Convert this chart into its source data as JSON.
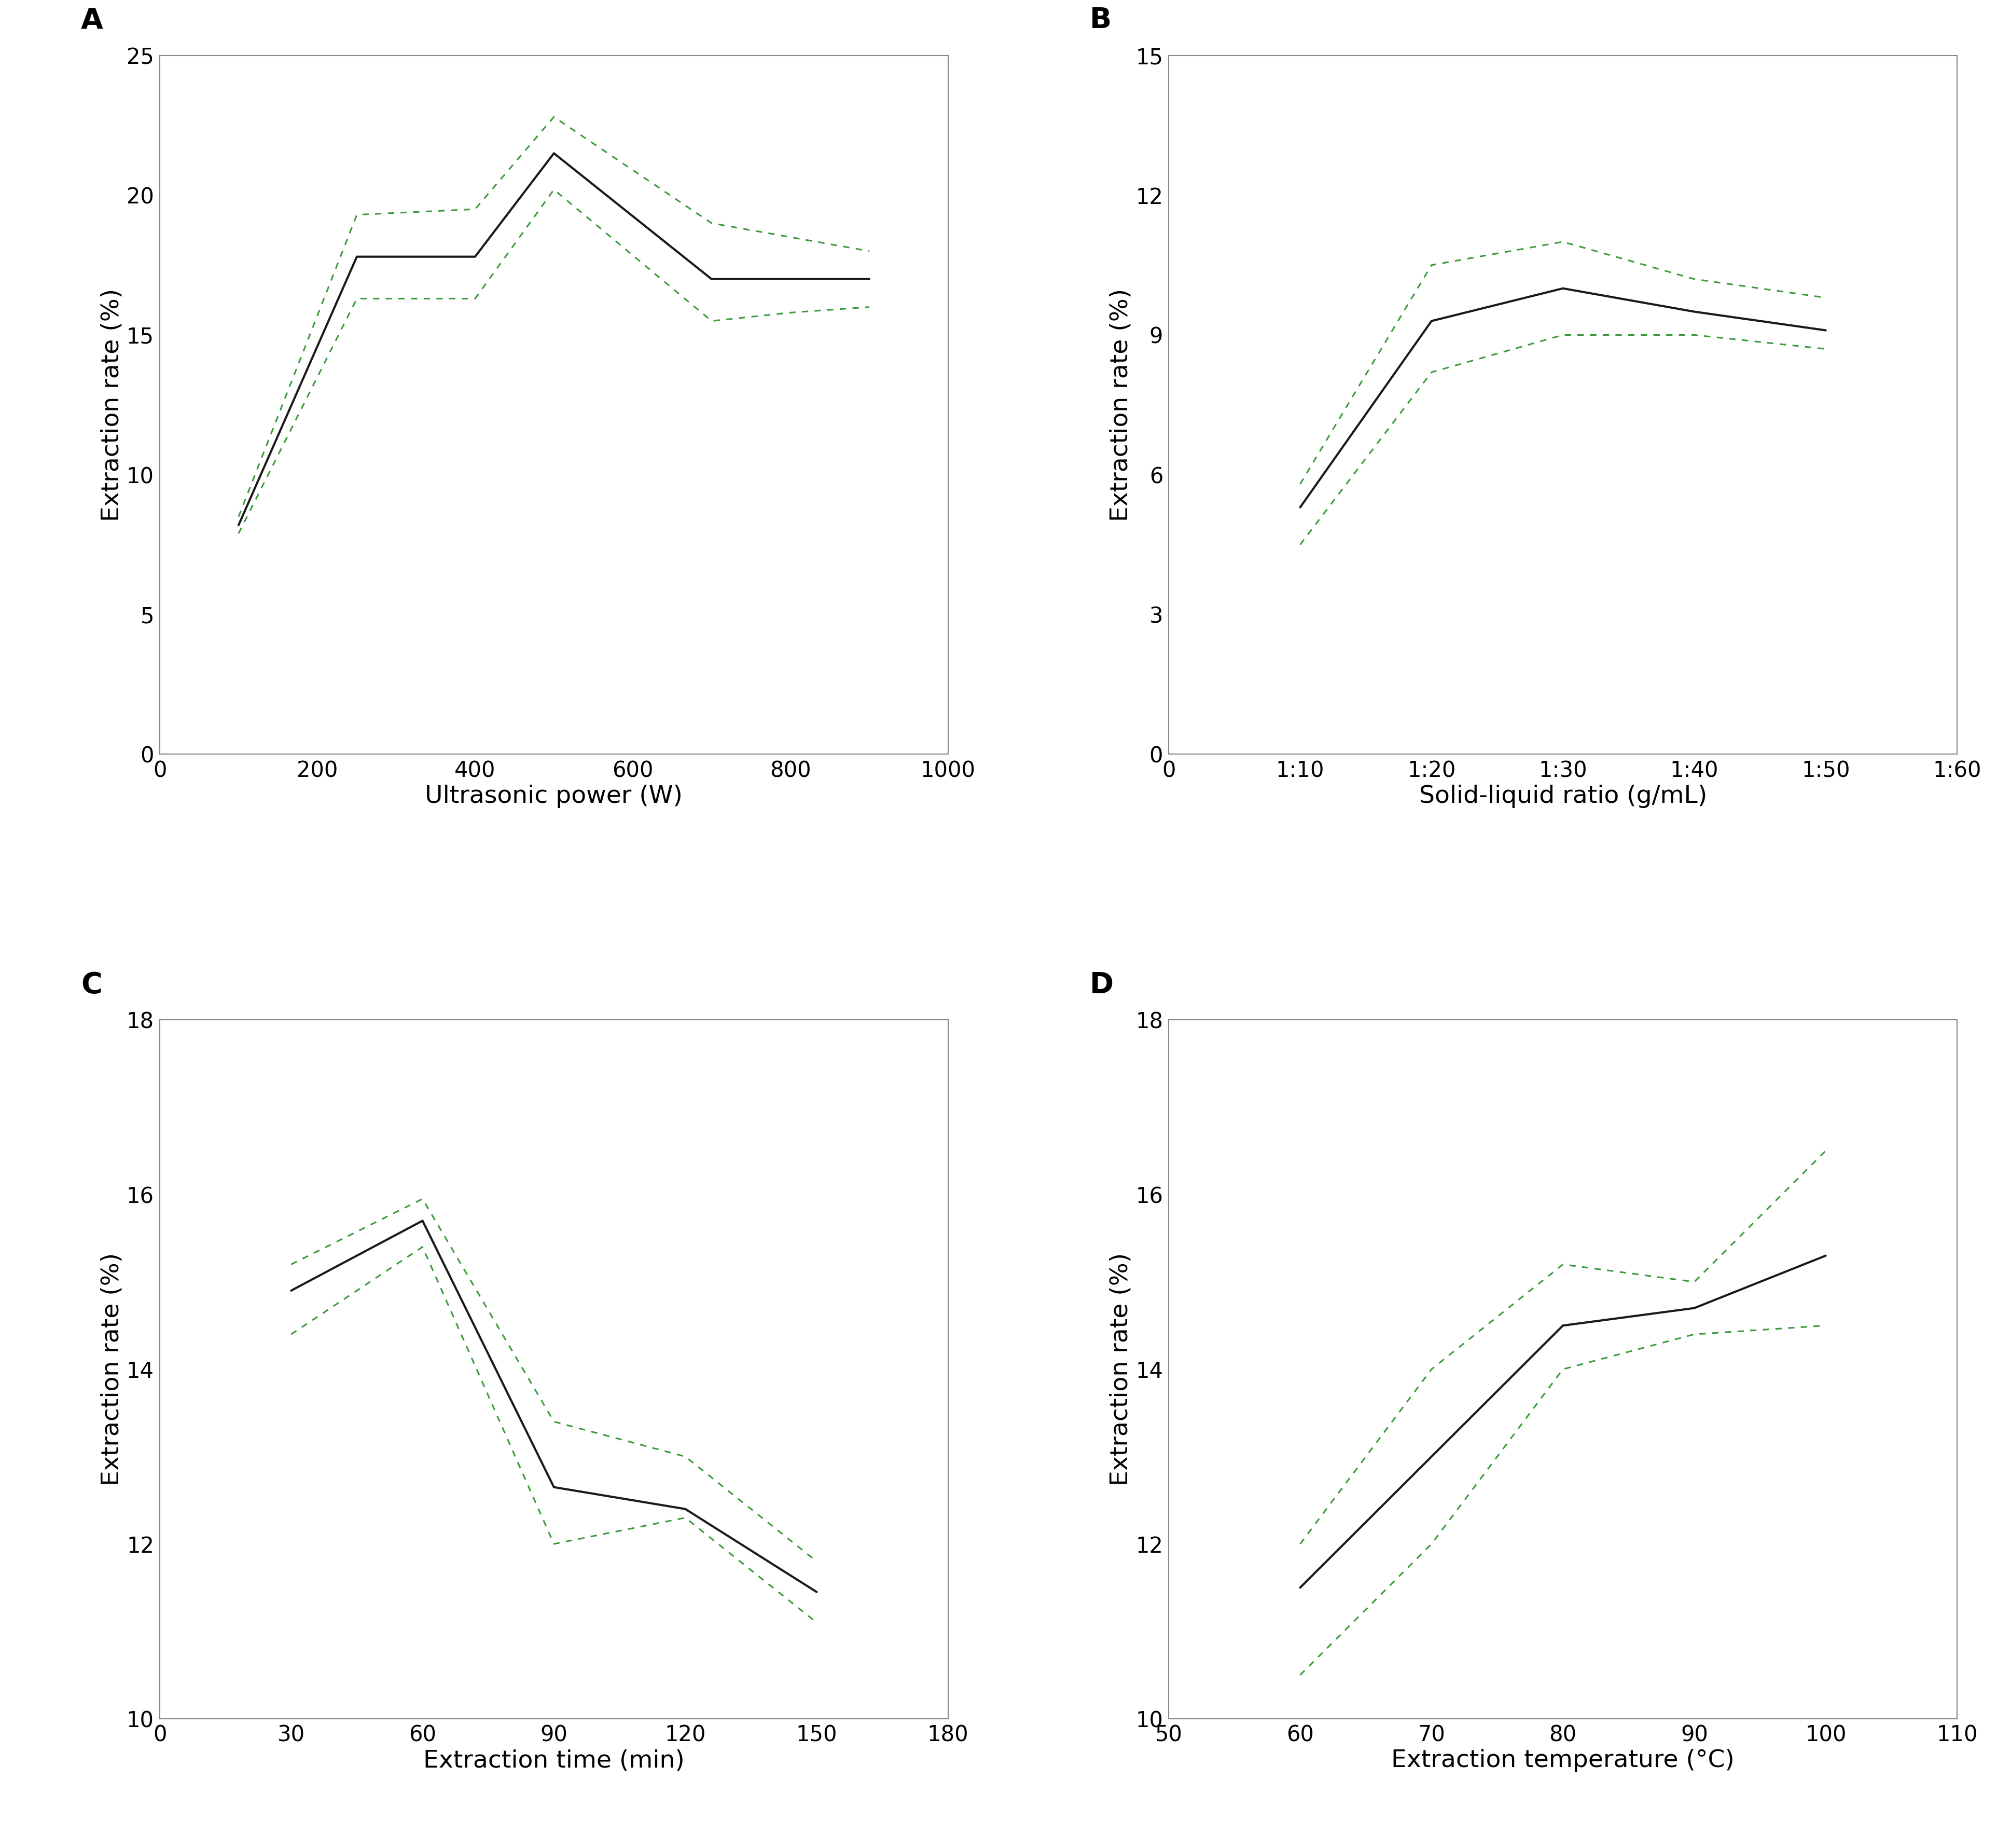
{
  "A": {
    "x": [
      100,
      250,
      400,
      500,
      700,
      800,
      900
    ],
    "y": [
      8.2,
      17.8,
      17.8,
      21.5,
      17.0,
      17.0,
      17.0
    ],
    "y_upper": [
      8.5,
      19.3,
      19.5,
      22.8,
      19.0,
      18.5,
      18.0
    ],
    "y_lower": [
      7.9,
      16.3,
      16.3,
      20.2,
      15.5,
      15.8,
      16.0
    ],
    "xlabel": "Ultrasonic power (W)",
    "ylabel": "Extraction rate (%)",
    "xlim": [
      0,
      1000
    ],
    "ylim": [
      0,
      25
    ],
    "xticks": [
      0,
      200,
      400,
      600,
      800,
      1000
    ],
    "yticks": [
      0,
      5,
      10,
      15,
      20,
      25
    ],
    "label": "A"
  },
  "B": {
    "x": [
      10,
      20,
      30,
      40,
      50
    ],
    "y": [
      5.3,
      9.3,
      10.0,
      9.5,
      9.1
    ],
    "y_upper": [
      5.8,
      10.5,
      11.0,
      10.2,
      9.8
    ],
    "y_lower": [
      4.5,
      8.2,
      9.0,
      9.0,
      8.7
    ],
    "xlabel": "Solid-liquid ratio (g/mL)",
    "ylabel": "Extraction rate (%)",
    "xlim": [
      0,
      60
    ],
    "ylim": [
      0,
      15
    ],
    "xticks": [
      0,
      10,
      20,
      30,
      40,
      50,
      60
    ],
    "xticklabels": [
      "0",
      "1:10",
      "1:20",
      "1:30",
      "1:40",
      "1:50",
      "1:60"
    ],
    "yticks": [
      0,
      3,
      6,
      9,
      12,
      15
    ],
    "label": "B"
  },
  "C": {
    "x": [
      30,
      60,
      90,
      120,
      150
    ],
    "y": [
      14.9,
      15.7,
      12.65,
      12.4,
      11.45
    ],
    "y_upper": [
      15.2,
      15.95,
      13.4,
      13.0,
      11.8
    ],
    "y_lower": [
      14.4,
      15.4,
      12.0,
      12.3,
      11.1
    ],
    "xlabel": "Extraction time (min)",
    "ylabel": "Extraction rate (%)",
    "xlim": [
      0,
      180
    ],
    "ylim": [
      10,
      18
    ],
    "xticks": [
      0,
      30,
      60,
      90,
      120,
      150,
      180
    ],
    "yticks": [
      10,
      12,
      14,
      16,
      18
    ],
    "label": "C"
  },
  "D": {
    "x": [
      60,
      70,
      80,
      90,
      100
    ],
    "y": [
      11.5,
      13.0,
      14.5,
      14.7,
      15.3
    ],
    "y_upper": [
      12.0,
      14.0,
      15.2,
      15.0,
      16.5
    ],
    "y_lower": [
      10.5,
      12.0,
      14.0,
      14.4,
      14.5
    ],
    "xlabel": "Extraction temperature (°C)",
    "ylabel": "Extraction rate (%)",
    "xlim": [
      50,
      110
    ],
    "ylim": [
      10,
      18
    ],
    "xticks": [
      50,
      60,
      70,
      80,
      90,
      100,
      110
    ],
    "yticks": [
      10,
      12,
      14,
      16,
      18
    ],
    "label": "D"
  },
  "line_color": "#1a1a1a",
  "band_color": "#3a9a3a",
  "line_width": 3.0,
  "band_linewidth": 2.2,
  "label_fontsize": 40,
  "tick_fontsize": 30,
  "axis_label_fontsize": 34,
  "spine_color": "#888888",
  "figure_bg": "#ffffff"
}
